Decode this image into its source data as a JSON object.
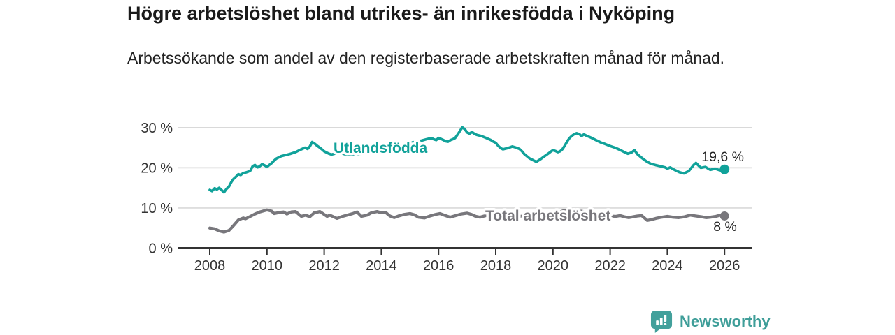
{
  "header": {
    "title": "Högre arbetslöshet bland utrikes- än inrikesfödda i Nyköping",
    "subtitle": "Arbetssökande som andel av den registerbaserade arbetskraften månad för månad."
  },
  "footer": {
    "brand": "Newsworthy",
    "brand_color": "#3f9e99"
  },
  "chart_data": {
    "type": "line",
    "title": "Högre arbetslöshet bland utrikes- än inrikesfödda i Nyköping",
    "subtitle": "Arbetssökande som andel av den registerbaserade arbetskraften månad för månad.",
    "unit": "%",
    "x_axis": {
      "ticks": [
        2008,
        2010,
        2012,
        2014,
        2016,
        2018,
        2020,
        2022,
        2024,
        2026
      ],
      "tick_labels": [
        "2008",
        "2010",
        "2012",
        "2014",
        "2016",
        "2018",
        "2020",
        "2022",
        "2024",
        "2026"
      ],
      "range": [
        2008,
        2026
      ]
    },
    "y_axis": {
      "ticks": [
        0,
        10,
        20,
        30
      ],
      "tick_labels": [
        "0 %",
        "10 %",
        "20 %",
        "30 %"
      ],
      "range": [
        0,
        32
      ],
      "grid": true
    },
    "colors": {
      "grid": "#d9d9d9",
      "axis": "#333333",
      "tick_text": "#333333",
      "value_label_text": "#222222"
    },
    "legend_position": "inline-labels",
    "series": [
      {
        "name": "Utlandsfödda",
        "color": "#11a29a",
        "end_label": "19,6 %",
        "end_value": 19.6,
        "points": [
          [
            2008.0,
            14.5
          ],
          [
            2008.08,
            14.2
          ],
          [
            2008.17,
            14.9
          ],
          [
            2008.25,
            14.6
          ],
          [
            2008.33,
            15.0
          ],
          [
            2008.42,
            14.4
          ],
          [
            2008.5,
            13.9
          ],
          [
            2008.58,
            14.7
          ],
          [
            2008.67,
            15.3
          ],
          [
            2008.75,
            16.4
          ],
          [
            2008.83,
            17.2
          ],
          [
            2008.92,
            17.8
          ],
          [
            2009.0,
            18.4
          ],
          [
            2009.08,
            18.2
          ],
          [
            2009.17,
            18.7
          ],
          [
            2009.25,
            18.8
          ],
          [
            2009.33,
            19.0
          ],
          [
            2009.42,
            19.3
          ],
          [
            2009.5,
            20.4
          ],
          [
            2009.58,
            20.7
          ],
          [
            2009.67,
            20.1
          ],
          [
            2009.75,
            20.4
          ],
          [
            2009.83,
            20.9
          ],
          [
            2009.92,
            20.6
          ],
          [
            2010.0,
            20.2
          ],
          [
            2010.08,
            20.7
          ],
          [
            2010.17,
            21.2
          ],
          [
            2010.25,
            21.8
          ],
          [
            2010.33,
            22.3
          ],
          [
            2010.5,
            22.9
          ],
          [
            2010.67,
            23.2
          ],
          [
            2010.83,
            23.5
          ],
          [
            2011.0,
            23.9
          ],
          [
            2011.17,
            24.5
          ],
          [
            2011.33,
            25.0
          ],
          [
            2011.42,
            24.7
          ],
          [
            2011.5,
            25.3
          ],
          [
            2011.58,
            26.4
          ],
          [
            2011.67,
            26.0
          ],
          [
            2011.75,
            25.5
          ],
          [
            2011.83,
            25.1
          ],
          [
            2011.92,
            24.6
          ],
          [
            2012.0,
            24.1
          ],
          [
            2012.08,
            23.8
          ],
          [
            2012.17,
            23.5
          ],
          [
            2012.25,
            23.3
          ],
          [
            2012.42,
            23.6
          ],
          [
            2012.5,
            23.9
          ],
          [
            2012.58,
            23.7
          ],
          [
            2012.75,
            23.3
          ],
          [
            2012.92,
            23.2
          ],
          [
            2013.08,
            23.5
          ],
          [
            2013.25,
            23.4
          ],
          [
            2013.42,
            23.7
          ],
          [
            2013.58,
            23.9
          ],
          [
            2013.75,
            24.3
          ],
          [
            2013.92,
            24.6
          ],
          [
            2014.08,
            24.9
          ],
          [
            2014.25,
            25.0
          ],
          [
            2014.42,
            25.2
          ],
          [
            2014.58,
            25.4
          ],
          [
            2014.75,
            25.7
          ],
          [
            2014.92,
            26.0
          ],
          [
            2015.08,
            26.3
          ],
          [
            2015.25,
            26.5
          ],
          [
            2015.42,
            26.8
          ],
          [
            2015.58,
            27.1
          ],
          [
            2015.75,
            27.4
          ],
          [
            2015.83,
            27.1
          ],
          [
            2015.92,
            26.9
          ],
          [
            2016.0,
            27.4
          ],
          [
            2016.08,
            27.2
          ],
          [
            2016.17,
            26.9
          ],
          [
            2016.25,
            26.6
          ],
          [
            2016.33,
            26.5
          ],
          [
            2016.42,
            26.9
          ],
          [
            2016.5,
            27.1
          ],
          [
            2016.58,
            27.4
          ],
          [
            2016.67,
            28.3
          ],
          [
            2016.75,
            29.2
          ],
          [
            2016.83,
            30.1
          ],
          [
            2016.92,
            29.6
          ],
          [
            2017.0,
            28.8
          ],
          [
            2017.08,
            28.5
          ],
          [
            2017.17,
            28.9
          ],
          [
            2017.25,
            28.5
          ],
          [
            2017.33,
            28.2
          ],
          [
            2017.5,
            27.9
          ],
          [
            2017.67,
            27.4
          ],
          [
            2017.83,
            26.9
          ],
          [
            2017.92,
            26.5
          ],
          [
            2018.0,
            26.2
          ],
          [
            2018.08,
            25.5
          ],
          [
            2018.17,
            24.9
          ],
          [
            2018.25,
            24.6
          ],
          [
            2018.42,
            24.9
          ],
          [
            2018.58,
            25.3
          ],
          [
            2018.67,
            25.1
          ],
          [
            2018.83,
            24.7
          ],
          [
            2018.92,
            24.1
          ],
          [
            2019.0,
            23.4
          ],
          [
            2019.17,
            22.4
          ],
          [
            2019.33,
            21.8
          ],
          [
            2019.42,
            21.5
          ],
          [
            2019.58,
            22.2
          ],
          [
            2019.67,
            22.7
          ],
          [
            2019.83,
            23.5
          ],
          [
            2019.92,
            24.0
          ],
          [
            2020.0,
            24.4
          ],
          [
            2020.08,
            24.2
          ],
          [
            2020.17,
            23.9
          ],
          [
            2020.25,
            24.1
          ],
          [
            2020.33,
            24.6
          ],
          [
            2020.42,
            25.6
          ],
          [
            2020.5,
            26.6
          ],
          [
            2020.58,
            27.4
          ],
          [
            2020.67,
            28.0
          ],
          [
            2020.75,
            28.4
          ],
          [
            2020.83,
            28.6
          ],
          [
            2020.92,
            28.4
          ],
          [
            2021.0,
            27.9
          ],
          [
            2021.08,
            28.3
          ],
          [
            2021.17,
            28.0
          ],
          [
            2021.33,
            27.5
          ],
          [
            2021.5,
            26.9
          ],
          [
            2021.67,
            26.3
          ],
          [
            2021.83,
            25.9
          ],
          [
            2022.0,
            25.4
          ],
          [
            2022.17,
            25.0
          ],
          [
            2022.33,
            24.5
          ],
          [
            2022.5,
            23.9
          ],
          [
            2022.62,
            23.5
          ],
          [
            2022.75,
            23.8
          ],
          [
            2022.85,
            24.4
          ],
          [
            2022.95,
            23.4
          ],
          [
            2023.08,
            22.6
          ],
          [
            2023.25,
            21.7
          ],
          [
            2023.42,
            21.0
          ],
          [
            2023.58,
            20.7
          ],
          [
            2023.75,
            20.4
          ],
          [
            2023.92,
            20.1
          ],
          [
            2024.0,
            19.8
          ],
          [
            2024.1,
            20.1
          ],
          [
            2024.25,
            19.5
          ],
          [
            2024.42,
            18.9
          ],
          [
            2024.58,
            18.6
          ],
          [
            2024.75,
            19.2
          ],
          [
            2024.92,
            20.7
          ],
          [
            2025.0,
            21.2
          ],
          [
            2025.17,
            20.0
          ],
          [
            2025.33,
            20.2
          ],
          [
            2025.5,
            19.5
          ],
          [
            2025.67,
            19.8
          ],
          [
            2025.83,
            19.4
          ],
          [
            2026.0,
            19.6
          ]
        ]
      },
      {
        "name": "Total arbetslöshet",
        "color": "#78777c",
        "end_label": "8 %",
        "end_value": 8.0,
        "points": [
          [
            2008.0,
            5.0
          ],
          [
            2008.17,
            4.8
          ],
          [
            2008.33,
            4.3
          ],
          [
            2008.5,
            4.0
          ],
          [
            2008.67,
            4.4
          ],
          [
            2008.83,
            5.6
          ],
          [
            2009.0,
            7.0
          ],
          [
            2009.17,
            7.5
          ],
          [
            2009.25,
            7.3
          ],
          [
            2009.42,
            7.9
          ],
          [
            2009.58,
            8.5
          ],
          [
            2009.75,
            9.0
          ],
          [
            2010.0,
            9.5
          ],
          [
            2010.17,
            9.2
          ],
          [
            2010.25,
            8.6
          ],
          [
            2010.45,
            8.9
          ],
          [
            2010.58,
            9.0
          ],
          [
            2010.7,
            8.5
          ],
          [
            2010.85,
            9.0
          ],
          [
            2011.0,
            9.1
          ],
          [
            2011.2,
            7.9
          ],
          [
            2011.35,
            8.2
          ],
          [
            2011.5,
            7.8
          ],
          [
            2011.65,
            8.8
          ],
          [
            2011.85,
            9.1
          ],
          [
            2012.1,
            7.9
          ],
          [
            2012.2,
            8.2
          ],
          [
            2012.45,
            7.4
          ],
          [
            2012.6,
            7.8
          ],
          [
            2012.8,
            8.2
          ],
          [
            2013.0,
            8.6
          ],
          [
            2013.15,
            9.0
          ],
          [
            2013.3,
            7.9
          ],
          [
            2013.5,
            8.2
          ],
          [
            2013.65,
            8.8
          ],
          [
            2013.85,
            9.1
          ],
          [
            2014.0,
            8.8
          ],
          [
            2014.15,
            8.9
          ],
          [
            2014.3,
            8.0
          ],
          [
            2014.45,
            7.6
          ],
          [
            2014.6,
            8.0
          ],
          [
            2014.8,
            8.4
          ],
          [
            2015.0,
            8.6
          ],
          [
            2015.15,
            8.3
          ],
          [
            2015.3,
            7.7
          ],
          [
            2015.5,
            7.5
          ],
          [
            2015.7,
            8.0
          ],
          [
            2015.9,
            8.4
          ],
          [
            2016.05,
            8.6
          ],
          [
            2016.2,
            8.2
          ],
          [
            2016.4,
            7.7
          ],
          [
            2016.6,
            8.1
          ],
          [
            2016.8,
            8.5
          ],
          [
            2017.0,
            8.7
          ],
          [
            2017.15,
            8.4
          ],
          [
            2017.3,
            7.9
          ],
          [
            2017.45,
            7.7
          ],
          [
            2017.6,
            8.0
          ],
          [
            2017.8,
            8.3
          ],
          [
            2018.0,
            8.2
          ],
          [
            2018.2,
            7.8
          ],
          [
            2018.4,
            7.5
          ],
          [
            2018.6,
            7.7
          ],
          [
            2018.8,
            7.9
          ],
          [
            2019.0,
            8.0
          ],
          [
            2019.2,
            7.7
          ],
          [
            2019.4,
            7.5
          ],
          [
            2019.6,
            7.8
          ],
          [
            2019.8,
            8.0
          ],
          [
            2020.0,
            8.3
          ],
          [
            2020.2,
            8.9
          ],
          [
            2020.4,
            9.4
          ],
          [
            2020.6,
            9.5
          ],
          [
            2020.8,
            9.4
          ],
          [
            2021.0,
            9.2
          ],
          [
            2021.2,
            8.9
          ],
          [
            2021.4,
            8.5
          ],
          [
            2021.6,
            8.3
          ],
          [
            2021.8,
            8.2
          ],
          [
            2022.0,
            8.0
          ],
          [
            2022.2,
            7.9
          ],
          [
            2022.35,
            8.1
          ],
          [
            2022.5,
            7.8
          ],
          [
            2022.65,
            7.6
          ],
          [
            2022.8,
            7.8
          ],
          [
            2022.95,
            8.0
          ],
          [
            2023.1,
            8.1
          ],
          [
            2023.3,
            6.9
          ],
          [
            2023.45,
            7.1
          ],
          [
            2023.6,
            7.4
          ],
          [
            2023.8,
            7.7
          ],
          [
            2024.0,
            7.9
          ],
          [
            2024.2,
            7.7
          ],
          [
            2024.4,
            7.6
          ],
          [
            2024.6,
            7.8
          ],
          [
            2024.8,
            8.2
          ],
          [
            2025.0,
            8.0
          ],
          [
            2025.2,
            7.8
          ],
          [
            2025.35,
            7.6
          ],
          [
            2025.5,
            7.7
          ],
          [
            2025.7,
            7.9
          ],
          [
            2025.85,
            8.2
          ],
          [
            2026.0,
            8.0
          ]
        ]
      }
    ]
  }
}
